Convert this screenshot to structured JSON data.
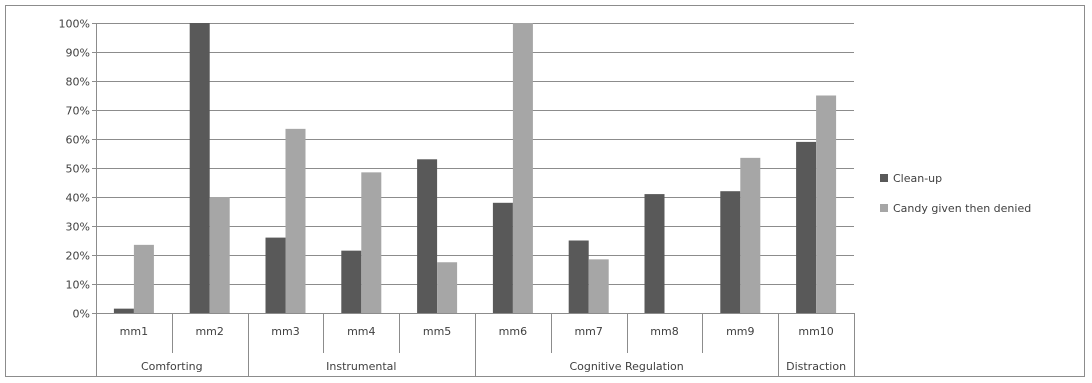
{
  "chart_data": {
    "type": "bar",
    "categories": [
      "mm1",
      "mm2",
      "mm3",
      "mm4",
      "mm5",
      "mm6",
      "mm7",
      "mm8",
      "mm9",
      "mm10"
    ],
    "groups": [
      {
        "label": "Comforting",
        "categories": [
          "mm1",
          "mm2"
        ]
      },
      {
        "label": "Instrumental",
        "categories": [
          "mm3",
          "mm4",
          "mm5"
        ]
      },
      {
        "label": "Cognitive Regulation",
        "categories": [
          "mm6",
          "mm7",
          "mm8",
          "mm9"
        ]
      },
      {
        "label": "Distraction",
        "categories": [
          "mm10"
        ]
      }
    ],
    "series": [
      {
        "name": "Clean-up",
        "color": "#595959",
        "values": [
          1.5,
          100,
          26,
          21.5,
          53,
          38,
          25,
          41,
          42,
          59
        ]
      },
      {
        "name": "Candy given then denied",
        "color": "#a6a6a6",
        "values": [
          23.5,
          40,
          63.5,
          48.5,
          17.5,
          100,
          18.5,
          0,
          53.5,
          75
        ]
      }
    ],
    "ylim": [
      0,
      100
    ],
    "yticks": [
      "0%",
      "10%",
      "20%",
      "30%",
      "40%",
      "50%",
      "60%",
      "70%",
      "80%",
      "90%",
      "100%"
    ],
    "grid": true,
    "legend": "right",
    "title": "",
    "xlabel": "",
    "ylabel": ""
  }
}
